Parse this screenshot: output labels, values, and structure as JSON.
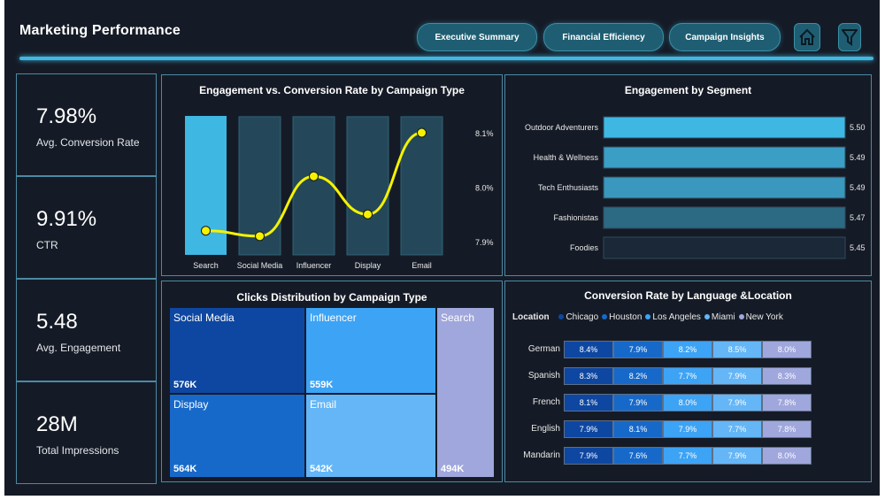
{
  "header": {
    "title": "Marketing Performance",
    "nav": [
      "Executive Summary",
      "Financial Efficiency",
      "Campaign Insights"
    ],
    "icons": [
      "home-icon",
      "filter-icon"
    ]
  },
  "kpis": [
    {
      "value": "7.98%",
      "label": "Avg. Conversion Rate"
    },
    {
      "value": "9.91%",
      "label": "CTR"
    },
    {
      "value": "5.48",
      "label": "Avg. Engagement"
    },
    {
      "value": "28M",
      "label": "Total Impressions"
    }
  ],
  "chart_data": [
    {
      "type": "bar",
      "title": "Engagement vs. Conversion Rate by Campaign Type",
      "categories": [
        "Search",
        "Social Media",
        "Influencer",
        "Display",
        "Email"
      ],
      "series": [
        {
          "values": [
            5.5,
            5.47,
            5.47,
            5.47,
            5.47
          ],
          "kind": "bar"
        },
        {
          "values": [
            7.92,
            7.91,
            8.02,
            7.95,
            8.1
          ],
          "kind": "line"
        }
      ],
      "y2_ticks": [
        "8.1%",
        "8.0%",
        "7.9%"
      ],
      "y2lim": [
        7.9,
        8.1
      ],
      "bar_highlight": "#3fb7e3",
      "bar_color": "#24485a",
      "line_color": "#f5f200"
    },
    {
      "type": "bar",
      "orientation": "horizontal",
      "title": "Engagement by Segment",
      "categories": [
        "Outdoor Adventurers",
        "Health & Wellness",
        "Tech Enthusiasts",
        "Fashionistas",
        "Foodies"
      ],
      "values": [
        5.5,
        5.49,
        5.49,
        5.47,
        5.45
      ],
      "value_labels": [
        "5.50",
        "5.49",
        "5.49",
        "5.47",
        "5.45"
      ],
      "colors": [
        "#3fb7e3",
        "#3a9ec5",
        "#3a97bd",
        "#2b6a82",
        "#1b2838"
      ]
    },
    {
      "type": "treemap",
      "title": "Clicks Distribution by Campaign Type",
      "items": [
        {
          "name": "Social Media",
          "label": "576K",
          "value": 576,
          "color": "#0e47a1"
        },
        {
          "name": "Influencer",
          "label": "559K",
          "value": 559,
          "color": "#3da3f5"
        },
        {
          "name": "Display",
          "label": "564K",
          "value": 564,
          "color": "#1769c9"
        },
        {
          "name": "Email",
          "label": "542K",
          "value": 542,
          "color": "#64b6f7"
        },
        {
          "name": "Search",
          "label": "494K",
          "value": 494,
          "color": "#9fa7dc"
        }
      ]
    },
    {
      "type": "heatmap",
      "title": "Conversion Rate by Language &Location",
      "legend_title": "Location",
      "columns": [
        "Chicago",
        "Houston",
        "Los Angeles",
        "Miami",
        "New York"
      ],
      "column_colors": [
        "#0e47a1",
        "#1769c9",
        "#3da3f5",
        "#64b6f7",
        "#9fa7dc"
      ],
      "rows": [
        "German",
        "Spanish",
        "French",
        "English",
        "Mandarin"
      ],
      "values": [
        [
          "8.4%",
          "7.9%",
          "8.2%",
          "8.5%",
          "8.0%"
        ],
        [
          "8.3%",
          "8.2%",
          "7.7%",
          "7.9%",
          "8.3%"
        ],
        [
          "8.1%",
          "7.9%",
          "8.0%",
          "7.9%",
          "7.8%"
        ],
        [
          "7.9%",
          "8.1%",
          "7.9%",
          "7.7%",
          "7.8%"
        ],
        [
          "7.9%",
          "7.6%",
          "7.7%",
          "7.9%",
          "8.0%"
        ]
      ],
      "numeric": [
        [
          8.4,
          7.9,
          8.2,
          8.5,
          8.0
        ],
        [
          8.3,
          8.2,
          7.7,
          7.9,
          8.3
        ],
        [
          8.1,
          7.9,
          8.0,
          7.9,
          7.8
        ],
        [
          7.9,
          8.1,
          7.9,
          7.7,
          7.8
        ],
        [
          7.9,
          7.6,
          7.7,
          7.9,
          8.0
        ]
      ]
    }
  ]
}
